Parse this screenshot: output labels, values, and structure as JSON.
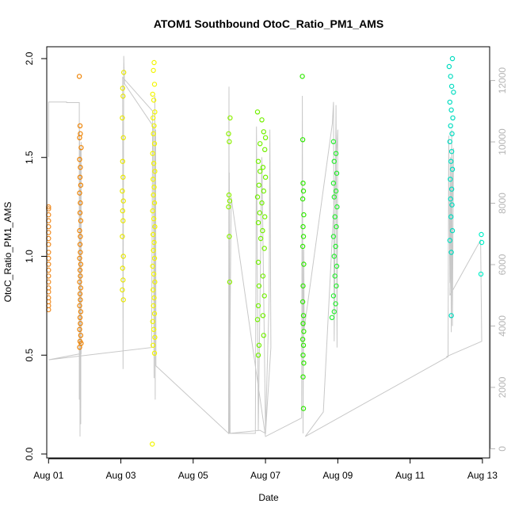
{
  "chart_data": {
    "type": "scatter",
    "title": "ATOM1 Southbound OtoC_Ratio_PM1_AMS",
    "xlabel": "Date",
    "ylabel": "OtoC_Ratio_PM1_AMS",
    "xlim": [
      0.95,
      13.2
    ],
    "ylim": [
      -0.02,
      2.06
    ],
    "secondary_ylim": [
      -300,
      13100
    ],
    "x_ticks": [
      {
        "value": 1,
        "label": "Aug 01"
      },
      {
        "value": 3,
        "label": "Aug 03"
      },
      {
        "value": 5,
        "label": "Aug 05"
      },
      {
        "value": 7,
        "label": "Aug 07"
      },
      {
        "value": 9,
        "label": "Aug 09"
      },
      {
        "value": 11,
        "label": "Aug 11"
      },
      {
        "value": 13,
        "label": "Aug 13"
      }
    ],
    "y_ticks": [
      {
        "value": 0.0,
        "label": "0.0"
      },
      {
        "value": 0.5,
        "label": "0.5"
      },
      {
        "value": 1.0,
        "label": "1.0"
      },
      {
        "value": 1.5,
        "label": "1.5"
      },
      {
        "value": 2.0,
        "label": "2.0"
      }
    ],
    "secondary_y_ticks": [
      {
        "value": 0,
        "label": "0"
      },
      {
        "value": 2000,
        "label": "2000"
      },
      {
        "value": 4000,
        "label": "4000"
      },
      {
        "value": 6000,
        "label": "6000"
      },
      {
        "value": 8000,
        "label": "8000"
      },
      {
        "value": 10000,
        "label": "10000"
      },
      {
        "value": 12000,
        "label": "12000"
      }
    ],
    "grid": false,
    "series": [
      {
        "color": "#f08a1e",
        "points": [
          [
            1.0,
            1.25
          ],
          [
            1.0,
            1.24
          ],
          [
            1.0,
            1.21
          ],
          [
            1.0,
            1.18
          ],
          [
            1.0,
            1.15
          ],
          [
            1.0,
            1.12
          ],
          [
            1.0,
            1.09
          ],
          [
            1.0,
            1.06
          ],
          [
            1.0,
            1.02
          ],
          [
            1.0,
            0.99
          ],
          [
            1.0,
            0.96
          ],
          [
            1.0,
            0.93
          ],
          [
            1.0,
            0.9
          ],
          [
            1.0,
            0.87
          ],
          [
            1.0,
            0.84
          ],
          [
            1.0,
            0.82
          ],
          [
            1.0,
            0.79
          ],
          [
            1.0,
            0.77
          ],
          [
            1.0,
            0.75
          ],
          [
            1.0,
            0.73
          ]
        ]
      },
      {
        "color": "#ee8200",
        "points": [
          [
            1.85,
            1.91
          ],
          [
            1.87,
            1.66
          ],
          [
            1.88,
            1.62
          ],
          [
            1.86,
            1.6
          ],
          [
            1.9,
            1.55
          ],
          [
            1.86,
            1.49
          ],
          [
            1.88,
            1.45
          ],
          [
            1.87,
            1.4
          ],
          [
            1.89,
            1.36
          ],
          [
            1.86,
            1.32
          ],
          [
            1.88,
            1.27
          ],
          [
            1.87,
            1.22
          ],
          [
            1.89,
            1.18
          ],
          [
            1.86,
            1.13
          ],
          [
            1.88,
            1.1
          ],
          [
            1.87,
            1.06
          ],
          [
            1.88,
            1.02
          ],
          [
            1.86,
            0.99
          ],
          [
            1.89,
            0.96
          ],
          [
            1.87,
            0.93
          ],
          [
            1.88,
            0.9
          ],
          [
            1.86,
            0.87
          ],
          [
            1.89,
            0.84
          ],
          [
            1.87,
            0.81
          ],
          [
            1.88,
            0.78
          ],
          [
            1.86,
            0.75
          ],
          [
            1.89,
            0.72
          ],
          [
            1.87,
            0.69
          ],
          [
            1.88,
            0.66
          ],
          [
            1.86,
            0.63
          ],
          [
            1.89,
            0.6
          ],
          [
            1.87,
            0.57
          ],
          [
            1.86,
            0.54
          ],
          [
            1.9,
            0.56
          ]
        ]
      },
      {
        "color": "#e7e700",
        "points": [
          [
            3.08,
            1.93
          ],
          [
            3.05,
            1.85
          ],
          [
            3.06,
            1.81
          ],
          [
            3.04,
            1.7
          ],
          [
            3.07,
            1.6
          ],
          [
            3.05,
            1.48
          ],
          [
            3.06,
            1.4
          ],
          [
            3.04,
            1.33
          ],
          [
            3.07,
            1.28
          ],
          [
            3.05,
            1.23
          ],
          [
            3.06,
            1.18
          ],
          [
            3.04,
            1.1
          ],
          [
            3.07,
            1.0
          ],
          [
            3.05,
            0.94
          ],
          [
            3.06,
            0.88
          ],
          [
            3.04,
            0.83
          ],
          [
            3.07,
            0.78
          ]
        ]
      },
      {
        "color": "#f2f500",
        "points": [
          [
            3.92,
            1.98
          ],
          [
            3.9,
            1.94
          ],
          [
            3.93,
            1.87
          ],
          [
            3.88,
            1.82
          ],
          [
            3.91,
            1.79
          ],
          [
            3.94,
            1.73
          ],
          [
            3.89,
            1.7
          ],
          [
            3.92,
            1.66
          ],
          [
            3.9,
            1.62
          ],
          [
            3.93,
            1.57
          ],
          [
            3.88,
            1.52
          ],
          [
            3.91,
            1.47
          ],
          [
            3.94,
            1.43
          ],
          [
            3.89,
            1.39
          ],
          [
            3.92,
            1.35
          ],
          [
            3.9,
            1.31
          ],
          [
            3.93,
            1.27
          ],
          [
            3.88,
            1.23
          ],
          [
            3.91,
            1.19
          ],
          [
            3.94,
            1.15
          ],
          [
            3.89,
            1.11
          ],
          [
            3.92,
            1.07
          ],
          [
            3.9,
            1.03
          ],
          [
            3.93,
            0.99
          ],
          [
            3.88,
            0.95
          ],
          [
            3.91,
            0.91
          ],
          [
            3.94,
            0.87
          ],
          [
            3.89,
            0.83
          ],
          [
            3.92,
            0.79
          ],
          [
            3.9,
            0.75
          ],
          [
            3.93,
            0.71
          ],
          [
            3.88,
            0.67
          ],
          [
            3.91,
            0.63
          ],
          [
            3.94,
            0.59
          ],
          [
            3.89,
            0.55
          ],
          [
            3.93,
            0.51
          ],
          [
            3.87,
            0.05
          ]
        ]
      },
      {
        "color": "#8cf000",
        "points": [
          [
            6.02,
            1.7
          ],
          [
            5.98,
            1.62
          ],
          [
            6.0,
            1.58
          ],
          [
            5.99,
            1.31
          ],
          [
            6.01,
            1.28
          ],
          [
            5.98,
            1.25
          ],
          [
            6.0,
            1.1
          ],
          [
            6.01,
            0.87
          ]
        ]
      },
      {
        "color": "#72f000",
        "points": [
          [
            6.78,
            1.73
          ],
          [
            6.9,
            1.69
          ],
          [
            6.95,
            1.63
          ],
          [
            7.0,
            1.6
          ],
          [
            6.85,
            1.57
          ],
          [
            6.98,
            1.54
          ],
          [
            6.8,
            1.48
          ],
          [
            6.93,
            1.45
          ],
          [
            6.85,
            1.43
          ],
          [
            7.0,
            1.4
          ],
          [
            6.82,
            1.36
          ],
          [
            6.95,
            1.33
          ],
          [
            6.78,
            1.3
          ],
          [
            6.9,
            1.27
          ],
          [
            6.84,
            1.22
          ],
          [
            6.98,
            1.2
          ],
          [
            6.8,
            1.17
          ],
          [
            6.92,
            1.13
          ],
          [
            6.87,
            1.09
          ],
          [
            6.97,
            1.04
          ],
          [
            6.8,
            0.97
          ],
          [
            6.93,
            0.9
          ],
          [
            6.82,
            0.85
          ],
          [
            6.97,
            0.8
          ],
          [
            6.8,
            0.75
          ],
          [
            6.93,
            0.7
          ],
          [
            6.78,
            0.68
          ],
          [
            6.95,
            0.6
          ],
          [
            6.82,
            0.55
          ],
          [
            6.8,
            0.5
          ]
        ]
      },
      {
        "color": "#2fe800",
        "points": [
          [
            8.02,
            1.91
          ],
          [
            8.03,
            1.59
          ],
          [
            8.04,
            1.37
          ],
          [
            8.05,
            1.33
          ],
          [
            8.03,
            1.29
          ],
          [
            8.06,
            1.21
          ],
          [
            8.04,
            1.15
          ],
          [
            8.05,
            1.1
          ],
          [
            8.03,
            1.05
          ],
          [
            8.06,
            0.96
          ],
          [
            8.04,
            0.85
          ],
          [
            8.03,
            0.77
          ],
          [
            8.05,
            0.7
          ],
          [
            8.04,
            0.66
          ],
          [
            8.06,
            0.62
          ],
          [
            8.03,
            0.58
          ],
          [
            8.05,
            0.55
          ],
          [
            8.04,
            0.5
          ],
          [
            8.06,
            0.46
          ],
          [
            8.04,
            0.39
          ],
          [
            8.05,
            0.23
          ]
        ]
      },
      {
        "color": "#28ee30",
        "points": [
          [
            8.88,
            1.58
          ],
          [
            8.95,
            1.52
          ],
          [
            8.9,
            1.48
          ],
          [
            8.97,
            1.42
          ],
          [
            8.88,
            1.37
          ],
          [
            8.95,
            1.33
          ],
          [
            8.9,
            1.3
          ],
          [
            8.98,
            1.25
          ],
          [
            8.92,
            1.2
          ],
          [
            8.96,
            1.15
          ],
          [
            8.88,
            1.1
          ],
          [
            8.94,
            1.05
          ],
          [
            8.9,
            1.0
          ],
          [
            8.97,
            0.95
          ],
          [
            8.92,
            0.9
          ],
          [
            8.96,
            0.85
          ],
          [
            8.88,
            0.8
          ],
          [
            8.94,
            0.76
          ],
          [
            8.9,
            0.72
          ],
          [
            8.84,
            0.69
          ]
        ]
      },
      {
        "color": "#00dcc0",
        "points": [
          [
            12.17,
            2.0
          ],
          [
            12.08,
            1.96
          ],
          [
            12.12,
            1.91
          ],
          [
            12.15,
            1.86
          ],
          [
            12.2,
            1.83
          ],
          [
            12.1,
            1.78
          ],
          [
            12.14,
            1.74
          ],
          [
            12.18,
            1.7
          ],
          [
            12.12,
            1.66
          ],
          [
            12.16,
            1.62
          ],
          [
            12.1,
            1.58
          ],
          [
            12.15,
            1.53
          ],
          [
            12.13,
            1.48
          ],
          [
            12.17,
            1.44
          ],
          [
            12.11,
            1.39
          ],
          [
            12.15,
            1.34
          ],
          [
            12.12,
            1.29
          ],
          [
            12.16,
            1.26
          ],
          [
            12.13,
            1.2
          ],
          [
            12.17,
            1.13
          ],
          [
            12.1,
            1.08
          ],
          [
            12.14,
            1.02
          ],
          [
            12.14,
            0.7
          ]
        ]
      },
      {
        "color": "#00f0c8",
        "points": [
          [
            12.97,
            1.11
          ],
          [
            12.98,
            1.07
          ],
          [
            12.96,
            0.91
          ]
        ]
      }
    ],
    "secondary_line": {
      "color": "#c8c8c8",
      "points": [
        [
          1.0,
          9500
        ],
        [
          1.0,
          11300
        ],
        [
          1.5,
          11300
        ],
        [
          1.5,
          11280
        ],
        [
          1.85,
          11280
        ],
        [
          1.85,
          1600
        ],
        [
          1.86,
          10400
        ],
        [
          1.87,
          400
        ],
        [
          1.88,
          9800
        ],
        [
          1.89,
          800
        ],
        [
          1.9,
          10000
        ],
        [
          1.9,
          3100
        ],
        [
          1.0,
          2900
        ],
        [
          3.85,
          3300
        ],
        [
          3.88,
          11000
        ],
        [
          3.05,
          12100
        ],
        [
          3.06,
          2600
        ],
        [
          3.08,
          12800
        ],
        [
          3.1,
          11900
        ],
        [
          3.9,
          10500
        ],
        [
          3.92,
          2300
        ],
        [
          3.94,
          11500
        ],
        [
          3.95,
          1600
        ],
        [
          3.96,
          10400
        ],
        [
          3.97,
          2700
        ],
        [
          5.98,
          500
        ],
        [
          5.99,
          11800
        ],
        [
          6.0,
          500
        ],
        [
          6.0,
          9000
        ],
        [
          6.02,
          500
        ],
        [
          6.72,
          500
        ],
        [
          6.75,
          10500
        ],
        [
          6.8,
          600
        ],
        [
          6.9,
          9500
        ],
        [
          7.0,
          600
        ],
        [
          7.1,
          4800
        ],
        [
          7.12,
          10400
        ],
        [
          7.15,
          3300
        ],
        [
          7.0,
          500
        ],
        [
          6.85,
          600
        ],
        [
          6.0,
          500
        ],
        [
          6.05,
          8200
        ],
        [
          7.0,
          400
        ],
        [
          8.0,
          1000
        ],
        [
          8.02,
          11500
        ],
        [
          8.04,
          500
        ],
        [
          8.06,
          6500
        ],
        [
          8.07,
          3900
        ],
        [
          8.85,
          10600
        ],
        [
          8.88,
          11300
        ],
        [
          8.9,
          3500
        ],
        [
          8.95,
          11200
        ],
        [
          8.98,
          3300
        ],
        [
          9.0,
          10400
        ],
        [
          8.6,
          1200
        ],
        [
          8.1,
          400
        ],
        [
          12.05,
          3000
        ],
        [
          12.07,
          10200
        ],
        [
          12.1,
          5400
        ],
        [
          12.12,
          9500
        ],
        [
          12.14,
          3800
        ],
        [
          12.15,
          10400
        ],
        [
          12.17,
          4000
        ],
        [
          12.2,
          9800
        ],
        [
          12.1,
          5000
        ],
        [
          12.95,
          6800
        ],
        [
          12.98,
          3500
        ],
        [
          12.0,
          3000
        ]
      ]
    }
  }
}
